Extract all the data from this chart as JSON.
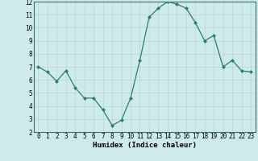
{
  "x": [
    0,
    1,
    2,
    3,
    4,
    5,
    6,
    7,
    8,
    9,
    10,
    11,
    12,
    13,
    14,
    15,
    16,
    17,
    18,
    19,
    20,
    21,
    22,
    23
  ],
  "y": [
    7.0,
    6.6,
    5.9,
    6.7,
    5.4,
    4.6,
    4.6,
    3.7,
    2.5,
    2.9,
    4.6,
    7.5,
    10.8,
    11.5,
    12.0,
    11.8,
    11.5,
    10.4,
    9.0,
    9.4,
    7.0,
    7.5,
    6.7,
    6.6
  ],
  "line_color": "#2e7d6e",
  "marker": "D",
  "marker_size": 2.0,
  "bg_color": "#ceeaea",
  "grid_color_major": "#b8d4d4",
  "grid_color_minor": "#c8e0e0",
  "xlabel": "Humidex (Indice chaleur)",
  "xlim": [
    -0.5,
    23.5
  ],
  "ylim": [
    2,
    12
  ],
  "ytick_values": [
    2,
    3,
    4,
    5,
    6,
    7,
    8,
    9,
    10,
    11,
    12
  ],
  "axis_label_fontsize": 6.5,
  "tick_fontsize": 5.5,
  "linewidth": 0.9
}
